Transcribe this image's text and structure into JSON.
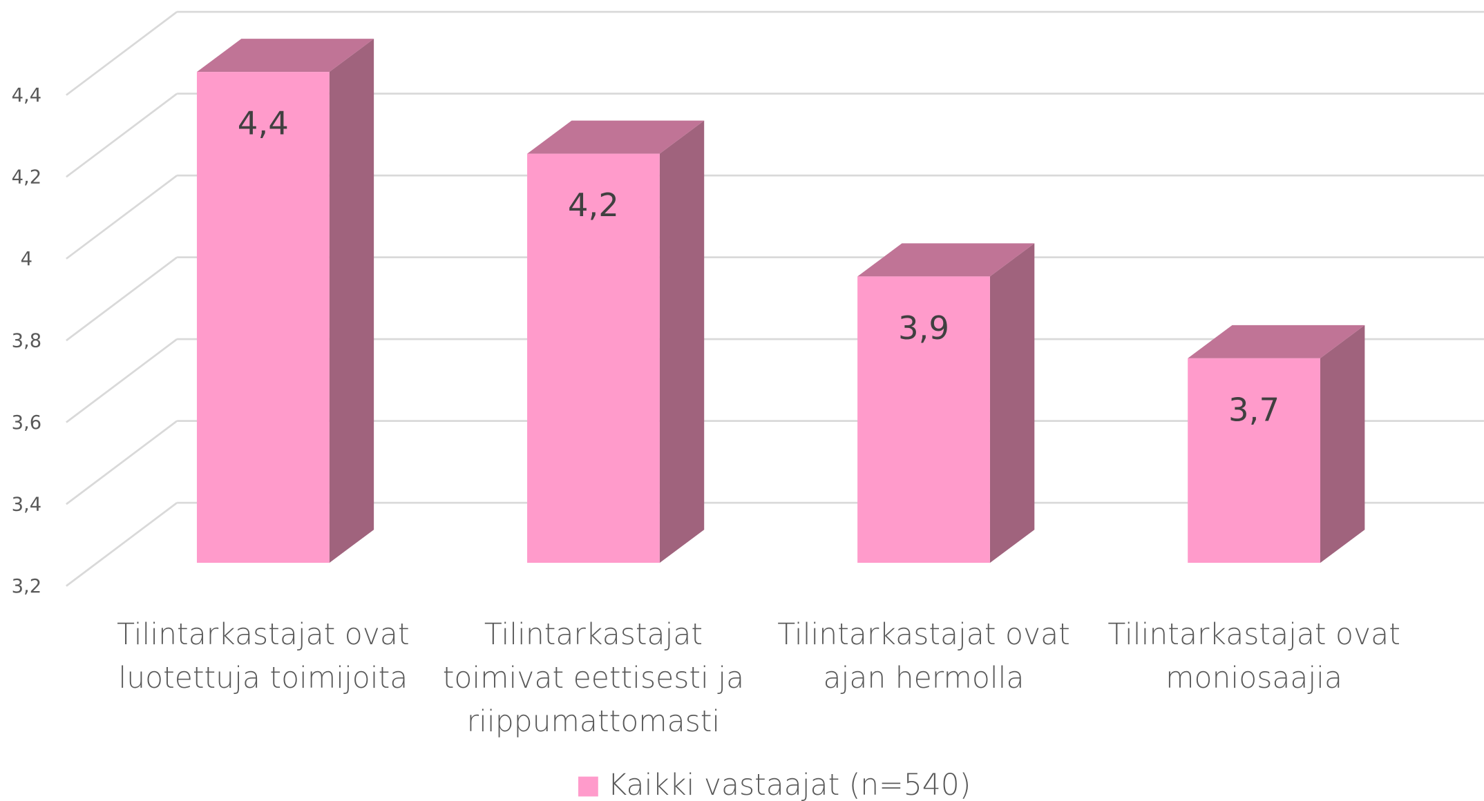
{
  "chart_data": {
    "type": "bar3d",
    "categories": [
      "Tilintarkastajat ovat luotettuja toimijoita",
      "Tilintarkastajat toimivat eettisesti ja riippumattomasti",
      "Tilintarkastajat ovat ajan hermolla",
      "Tilintarkastajat ovat moniosaajia"
    ],
    "series": [
      {
        "name": "Kaikki vastaajat (n=540)",
        "color": "#ff9bcb",
        "side_color": "#a0637d",
        "top_color": "#c07496",
        "values": [
          4.4,
          4.2,
          3.9,
          3.7
        ],
        "value_labels": [
          "4,4",
          "4,2",
          "3,9",
          "3,7"
        ]
      }
    ],
    "ylim": [
      3.2,
      4.6
    ],
    "yticks": [
      {
        "value": 3.2,
        "label": "3,2"
      },
      {
        "value": 3.4,
        "label": "3,4"
      },
      {
        "value": 3.6,
        "label": "3,6"
      },
      {
        "value": 3.8,
        "label": "3,8"
      },
      4,
      {
        "value": 4.2,
        "label": "4,2"
      },
      {
        "value": 4.4,
        "label": "4,4"
      }
    ],
    "grid": true,
    "legend": "bottom"
  }
}
